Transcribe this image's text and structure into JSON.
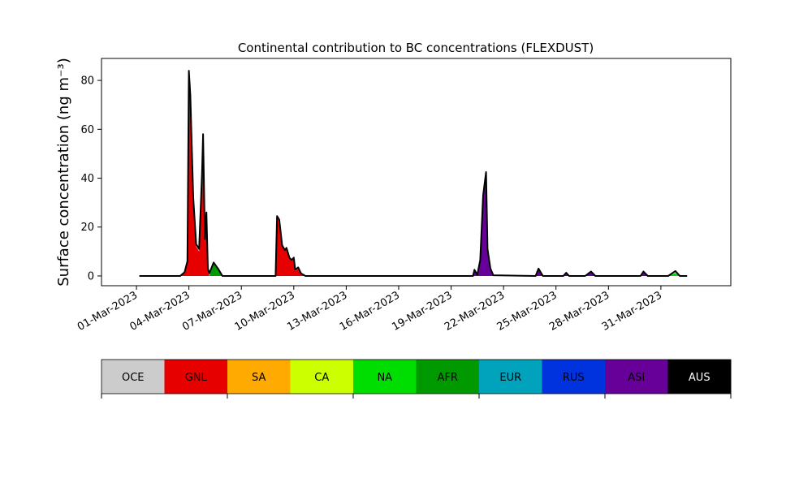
{
  "chart_data": {
    "type": "area",
    "title": "Continental contribution to BC concentrations (FLEXDUST)",
    "ylabel": "Surface concentration (ng m⁻³)",
    "xlabel": "",
    "ylim": [
      -4,
      89
    ],
    "yticks": [
      0,
      20,
      40,
      60,
      80
    ],
    "xlim": [
      "2023-02-27",
      "2023-04-04"
    ],
    "xtick_labels": [
      "01-Mar-2023",
      "04-Mar-2023",
      "07-Mar-2023",
      "10-Mar-2023",
      "13-Mar-2023",
      "16-Mar-2023",
      "19-Mar-2023",
      "22-Mar-2023",
      "25-Mar-2023",
      "28-Mar-2023",
      "31-Mar-2023"
    ],
    "xtick_dates": [
      "2023-03-01",
      "2023-03-04",
      "2023-03-07",
      "2023-03-10",
      "2023-03-13",
      "2023-03-16",
      "2023-03-19",
      "2023-03-22",
      "2023-03-25",
      "2023-03-28",
      "2023-03-31"
    ],
    "grid": false,
    "legend_placement": "bottom-colorbar",
    "series": [
      {
        "name": "OCE",
        "color": "#cccccc",
        "text_color": "#000000"
      },
      {
        "name": "GNL",
        "color": "#e60000",
        "text_color": "#000000",
        "points": [
          [
            "2023-03-03 12:00",
            0
          ],
          [
            "2023-03-03 18:00",
            1.5
          ],
          [
            "2023-03-03 22:00",
            6
          ],
          [
            "2023-03-04 00:00",
            80
          ],
          [
            "2023-03-04 02:00",
            70
          ],
          [
            "2023-03-04 06:00",
            30
          ],
          [
            "2023-03-04 10:00",
            12
          ],
          [
            "2023-03-04 14:00",
            10
          ],
          [
            "2023-03-04 18:00",
            40
          ],
          [
            "2023-03-04 19:30",
            55
          ],
          [
            "2023-03-04 22:00",
            14
          ],
          [
            "2023-03-05 00:00",
            24
          ],
          [
            "2023-03-05 02:00",
            3
          ],
          [
            "2023-03-05 04:00",
            0
          ],
          [
            "2023-03-08 23:00",
            0
          ],
          [
            "2023-03-09 01:00",
            24
          ],
          [
            "2023-03-09 04:00",
            22
          ],
          [
            "2023-03-09 08:00",
            12
          ],
          [
            "2023-03-09 12:00",
            10
          ],
          [
            "2023-03-09 14:00",
            11
          ],
          [
            "2023-03-09 18:00",
            7
          ],
          [
            "2023-03-09 21:00",
            6
          ],
          [
            "2023-03-10 00:00",
            7
          ],
          [
            "2023-03-10 02:00",
            2
          ],
          [
            "2023-03-10 06:00",
            3
          ],
          [
            "2023-03-10 10:00",
            1
          ],
          [
            "2023-03-10 16:00",
            0
          ]
        ]
      },
      {
        "name": "SA",
        "color": "#ffaa00",
        "text_color": "#000000"
      },
      {
        "name": "CA",
        "color": "#ccff00",
        "text_color": "#000000"
      },
      {
        "name": "NA",
        "color": "#00dd00",
        "text_color": "#000000",
        "points": [
          [
            "2023-03-31 10:00",
            0
          ],
          [
            "2023-03-31 20:00",
            1.2
          ],
          [
            "2023-04-01 02:00",
            0
          ]
        ]
      },
      {
        "name": "AFR",
        "color": "#009900",
        "text_color": "#000000",
        "points": [
          [
            "2023-03-05 04:00",
            0
          ],
          [
            "2023-03-05 10:00",
            5
          ],
          [
            "2023-03-05 16:00",
            3
          ],
          [
            "2023-03-05 22:00",
            0
          ],
          [
            "2023-03-20 12:00",
            0
          ],
          [
            "2023-03-21 00:00",
            1
          ],
          [
            "2023-03-21 12:00",
            0
          ]
        ]
      },
      {
        "name": "EUR",
        "color": "#00a3bb",
        "text_color": "#000000"
      },
      {
        "name": "RUS",
        "color": "#0033dd",
        "text_color": "#000000"
      },
      {
        "name": "ASI",
        "color": "#660099",
        "text_color": "#000000",
        "points": [
          [
            "2023-03-20 06:00",
            0
          ],
          [
            "2023-03-20 08:00",
            2
          ],
          [
            "2023-03-20 12:00",
            0
          ],
          [
            "2023-03-20 16:00",
            6
          ],
          [
            "2023-03-20 20:00",
            32
          ],
          [
            "2023-03-21 00:00",
            41
          ],
          [
            "2023-03-21 02:00",
            10
          ],
          [
            "2023-03-21 06:00",
            3
          ],
          [
            "2023-03-21 10:00",
            0
          ],
          [
            "2023-03-23 20:00",
            0
          ],
          [
            "2023-03-24 00:00",
            2.5
          ],
          [
            "2023-03-24 06:00",
            0
          ],
          [
            "2023-03-25 10:00",
            0
          ],
          [
            "2023-03-25 14:00",
            1.2
          ],
          [
            "2023-03-25 18:00",
            0
          ],
          [
            "2023-03-26 16:00",
            0
          ],
          [
            "2023-03-27 00:00",
            1.5
          ],
          [
            "2023-03-27 06:00",
            0
          ],
          [
            "2023-03-29 20:00",
            0
          ],
          [
            "2023-03-30 00:00",
            1.5
          ],
          [
            "2023-03-30 06:00",
            0
          ]
        ]
      },
      {
        "name": "AUS",
        "color": "#000000",
        "text_color": "#ffffff"
      }
    ],
    "total_line": {
      "color": "#000000",
      "points": [
        [
          "2023-03-01 04:00",
          0
        ],
        [
          "2023-03-03 12:00",
          0
        ],
        [
          "2023-03-03 18:00",
          1.5
        ],
        [
          "2023-03-03 22:00",
          6
        ],
        [
          "2023-03-04 00:00",
          84
        ],
        [
          "2023-03-04 02:00",
          74
        ],
        [
          "2023-03-04 06:00",
          32
        ],
        [
          "2023-03-04 10:00",
          13
        ],
        [
          "2023-03-04 14:00",
          11
        ],
        [
          "2023-03-04 18:00",
          42
        ],
        [
          "2023-03-04 19:30",
          58
        ],
        [
          "2023-03-04 22:00",
          15
        ],
        [
          "2023-03-05 00:00",
          26
        ],
        [
          "2023-03-05 02:00",
          3
        ],
        [
          "2023-03-05 04:00",
          1
        ],
        [
          "2023-03-05 10:00",
          5.5
        ],
        [
          "2023-03-05 16:00",
          3
        ],
        [
          "2023-03-05 22:00",
          0
        ],
        [
          "2023-03-08 23:00",
          0
        ],
        [
          "2023-03-09 01:00",
          24.5
        ],
        [
          "2023-03-09 04:00",
          23
        ],
        [
          "2023-03-09 08:00",
          12.5
        ],
        [
          "2023-03-09 12:00",
          10.5
        ],
        [
          "2023-03-09 14:00",
          11.5
        ],
        [
          "2023-03-09 18:00",
          7.5
        ],
        [
          "2023-03-09 21:00",
          6.5
        ],
        [
          "2023-03-10 00:00",
          7.5
        ],
        [
          "2023-03-10 02:00",
          2.5
        ],
        [
          "2023-03-10 06:00",
          3.5
        ],
        [
          "2023-03-10 10:00",
          1
        ],
        [
          "2023-03-10 16:00",
          0
        ],
        [
          "2023-03-20 06:00",
          0
        ],
        [
          "2023-03-20 08:00",
          2.5
        ],
        [
          "2023-03-20 12:00",
          0.5
        ],
        [
          "2023-03-20 16:00",
          6.5
        ],
        [
          "2023-03-20 20:00",
          33
        ],
        [
          "2023-03-21 00:00",
          42.5
        ],
        [
          "2023-03-21 02:00",
          11
        ],
        [
          "2023-03-21 06:00",
          3
        ],
        [
          "2023-03-21 10:00",
          0.3
        ],
        [
          "2023-03-23 20:00",
          0
        ],
        [
          "2023-03-24 00:00",
          3
        ],
        [
          "2023-03-24 06:00",
          0
        ],
        [
          "2023-03-25 10:00",
          0
        ],
        [
          "2023-03-25 14:00",
          1.3
        ],
        [
          "2023-03-25 18:00",
          0
        ],
        [
          "2023-03-26 16:00",
          0
        ],
        [
          "2023-03-27 00:00",
          1.8
        ],
        [
          "2023-03-27 06:00",
          0
        ],
        [
          "2023-03-29 20:00",
          0
        ],
        [
          "2023-03-30 00:00",
          1.8
        ],
        [
          "2023-03-30 06:00",
          0
        ],
        [
          "2023-03-31 10:00",
          0
        ],
        [
          "2023-03-31 20:00",
          2
        ],
        [
          "2023-04-01 02:00",
          0
        ],
        [
          "2023-04-01 12:00",
          0
        ]
      ]
    }
  }
}
